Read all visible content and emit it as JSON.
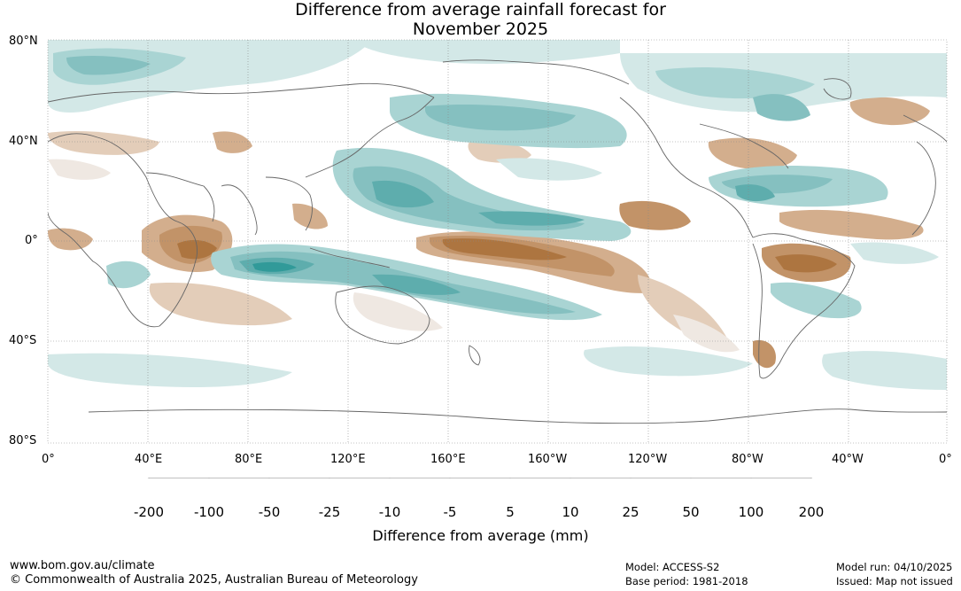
{
  "title": {
    "line1": "Difference from average rainfall forecast for",
    "line2": "November 2025"
  },
  "map": {
    "lat_labels": [
      "80°N",
      "40°N",
      "0°",
      "40°S",
      "80°S"
    ],
    "lon_labels": [
      "0°",
      "40°E",
      "80°E",
      "120°E",
      "160°E",
      "160°W",
      "120°W",
      "80°W",
      "40°W",
      "0°"
    ]
  },
  "colorbar": {
    "title": "Difference from average (mm)",
    "tick_labels": [
      "-200",
      "-100",
      "-50",
      "-25",
      "-10",
      "-5",
      "5",
      "10",
      "25",
      "50",
      "100",
      "200"
    ],
    "colors": [
      "#8f5a26",
      "#ad7540",
      "#c29368",
      "#d3ae8d",
      "#e3cdb9",
      "#efe8e2",
      "#ffffff",
      "#d3e8e7",
      "#a9d4d3",
      "#85c0c0",
      "#5eadad",
      "#319a99",
      "#267473"
    ]
  },
  "footer": {
    "website": "www.bom.gov.au/climate",
    "copyright": "© Commonwealth of Australia 2025, Australian Bureau of Meteorology",
    "model": "Model: ACCESS-S2",
    "base_period": "Base period: 1981-2018",
    "model_run": "Model run: 04/10/2025",
    "issued": "Issued: Map not issued"
  }
}
